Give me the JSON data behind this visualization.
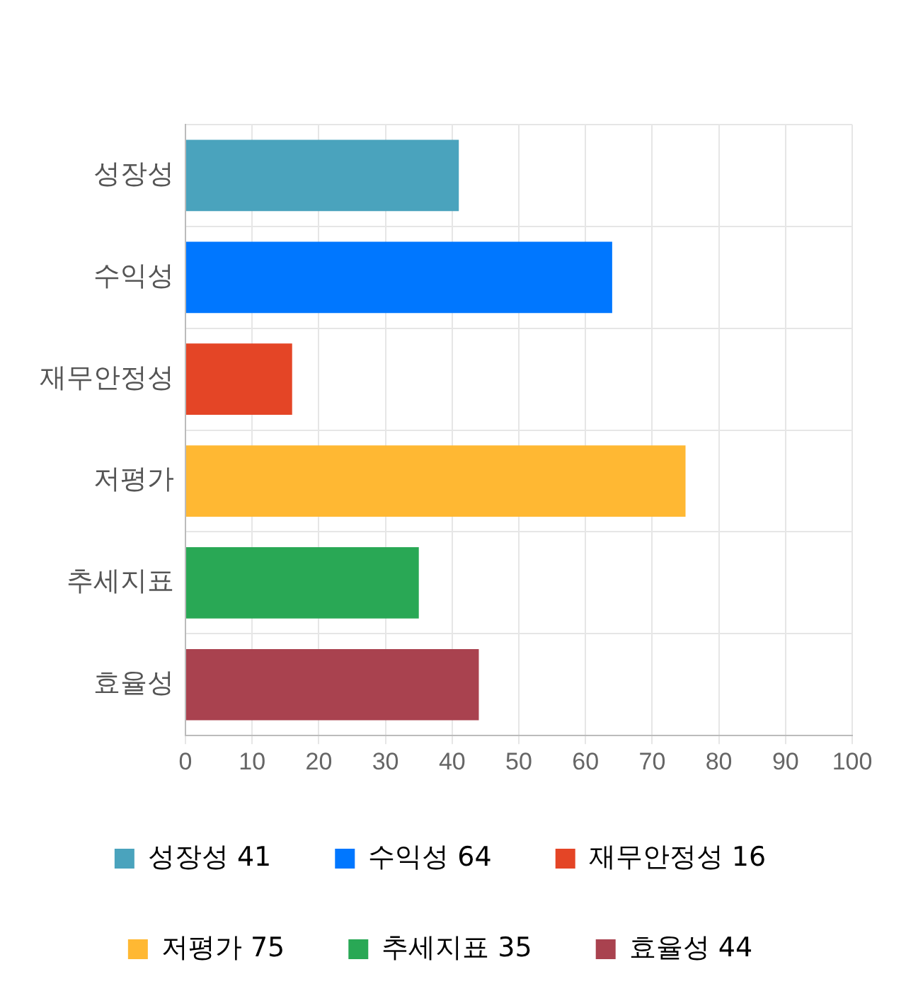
{
  "chart_data": {
    "type": "bar",
    "orientation": "horizontal",
    "categories": [
      "성장성",
      "수익성",
      "재무안정성",
      "저평가",
      "추세지표",
      "효율성"
    ],
    "series": [
      {
        "name": "성장성 41",
        "color": "#4aa3bd",
        "values": [
          41,
          null,
          null,
          null,
          null,
          null
        ]
      },
      {
        "name": "수익성 64",
        "color": "#0077ff",
        "values": [
          null,
          64,
          null,
          null,
          null,
          null
        ]
      },
      {
        "name": "재무안정성 16",
        "color": "#e44526",
        "values": [
          null,
          null,
          16,
          null,
          null,
          null
        ]
      },
      {
        "name": "저평가 75",
        "color": "#ffb833",
        "values": [
          null,
          null,
          null,
          75,
          null,
          null
        ]
      },
      {
        "name": "추세지표 35",
        "color": "#29a855",
        "values": [
          null,
          null,
          null,
          null,
          35,
          null
        ]
      },
      {
        "name": "효율성 44",
        "color": "#a9424f",
        "values": [
          null,
          null,
          null,
          null,
          null,
          44
        ]
      }
    ],
    "xlim": [
      0,
      100
    ],
    "xticks": [
      0,
      10,
      20,
      30,
      40,
      50,
      60,
      70,
      80,
      90,
      100
    ],
    "grid": true,
    "legend": "bottom"
  }
}
